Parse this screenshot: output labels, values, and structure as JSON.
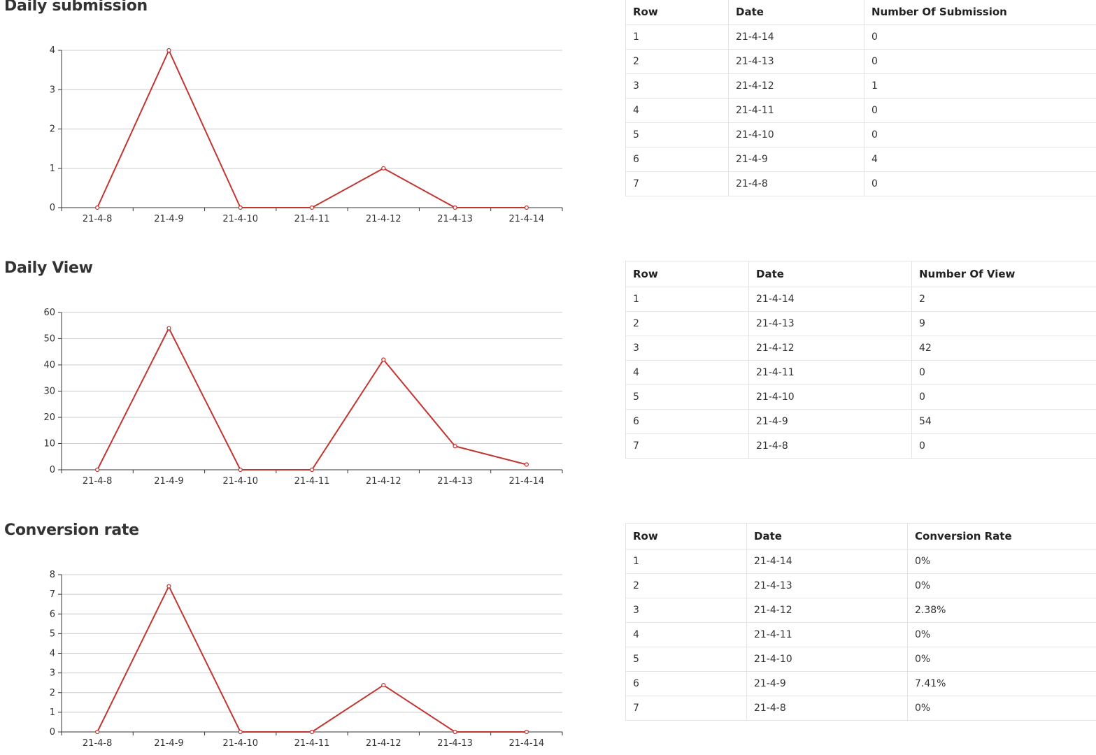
{
  "sections": [
    {
      "title": "Daily submission",
      "chart_data": {
        "type": "line",
        "title": "Daily submission",
        "categories": [
          "21-4-8",
          "21-4-9",
          "21-4-10",
          "21-4-11",
          "21-4-12",
          "21-4-13",
          "21-4-14"
        ],
        "values": [
          0,
          4,
          0,
          0,
          1,
          0,
          0
        ],
        "yticks": [
          "0",
          "1",
          "2",
          "3",
          "4"
        ],
        "ylim": [
          0,
          4
        ],
        "grid": true,
        "line_color": "#c23531"
      },
      "table": {
        "headers": [
          "Row",
          "Date",
          "Number Of Submission"
        ],
        "rows": [
          [
            "1",
            "21-4-14",
            "0"
          ],
          [
            "2",
            "21-4-13",
            "0"
          ],
          [
            "3",
            "21-4-12",
            "1"
          ],
          [
            "4",
            "21-4-11",
            "0"
          ],
          [
            "5",
            "21-4-10",
            "0"
          ],
          [
            "6",
            "21-4-9",
            "4"
          ],
          [
            "7",
            "21-4-8",
            "0"
          ]
        ]
      }
    },
    {
      "title": "Daily View",
      "chart_data": {
        "type": "line",
        "title": "Daily View",
        "categories": [
          "21-4-8",
          "21-4-9",
          "21-4-10",
          "21-4-11",
          "21-4-12",
          "21-4-13",
          "21-4-14"
        ],
        "values": [
          0,
          54,
          0,
          0,
          42,
          9,
          2
        ],
        "yticks": [
          "0",
          "10",
          "20",
          "30",
          "40",
          "50",
          "60"
        ],
        "ylim": [
          0,
          60
        ],
        "grid": true,
        "line_color": "#c23531"
      },
      "table": {
        "headers": [
          "Row",
          "Date",
          "Number Of View"
        ],
        "rows": [
          [
            "1",
            "21-4-14",
            "2"
          ],
          [
            "2",
            "21-4-13",
            "9"
          ],
          [
            "3",
            "21-4-12",
            "42"
          ],
          [
            "4",
            "21-4-11",
            "0"
          ],
          [
            "5",
            "21-4-10",
            "0"
          ],
          [
            "6",
            "21-4-9",
            "54"
          ],
          [
            "7",
            "21-4-8",
            "0"
          ]
        ]
      }
    },
    {
      "title": "Conversion rate",
      "chart_data": {
        "type": "line",
        "title": "Conversion rate",
        "categories": [
          "21-4-8",
          "21-4-9",
          "21-4-10",
          "21-4-11",
          "21-4-12",
          "21-4-13",
          "21-4-14"
        ],
        "values": [
          0,
          7.41,
          0,
          0,
          2.38,
          0,
          0
        ],
        "yticks": [
          "0",
          "1",
          "2",
          "3",
          "4",
          "5",
          "6",
          "7",
          "8"
        ],
        "ylim": [
          0,
          8
        ],
        "grid": true,
        "line_color": "#c23531"
      },
      "table": {
        "headers": [
          "Row",
          "Date",
          "Conversion Rate"
        ],
        "rows": [
          [
            "1",
            "21-4-14",
            "0%"
          ],
          [
            "2",
            "21-4-13",
            "0%"
          ],
          [
            "3",
            "21-4-12",
            "2.38%"
          ],
          [
            "4",
            "21-4-11",
            "0%"
          ],
          [
            "5",
            "21-4-10",
            "0%"
          ],
          [
            "6",
            "21-4-9",
            "7.41%"
          ],
          [
            "7",
            "21-4-8",
            "0%"
          ]
        ]
      }
    }
  ]
}
